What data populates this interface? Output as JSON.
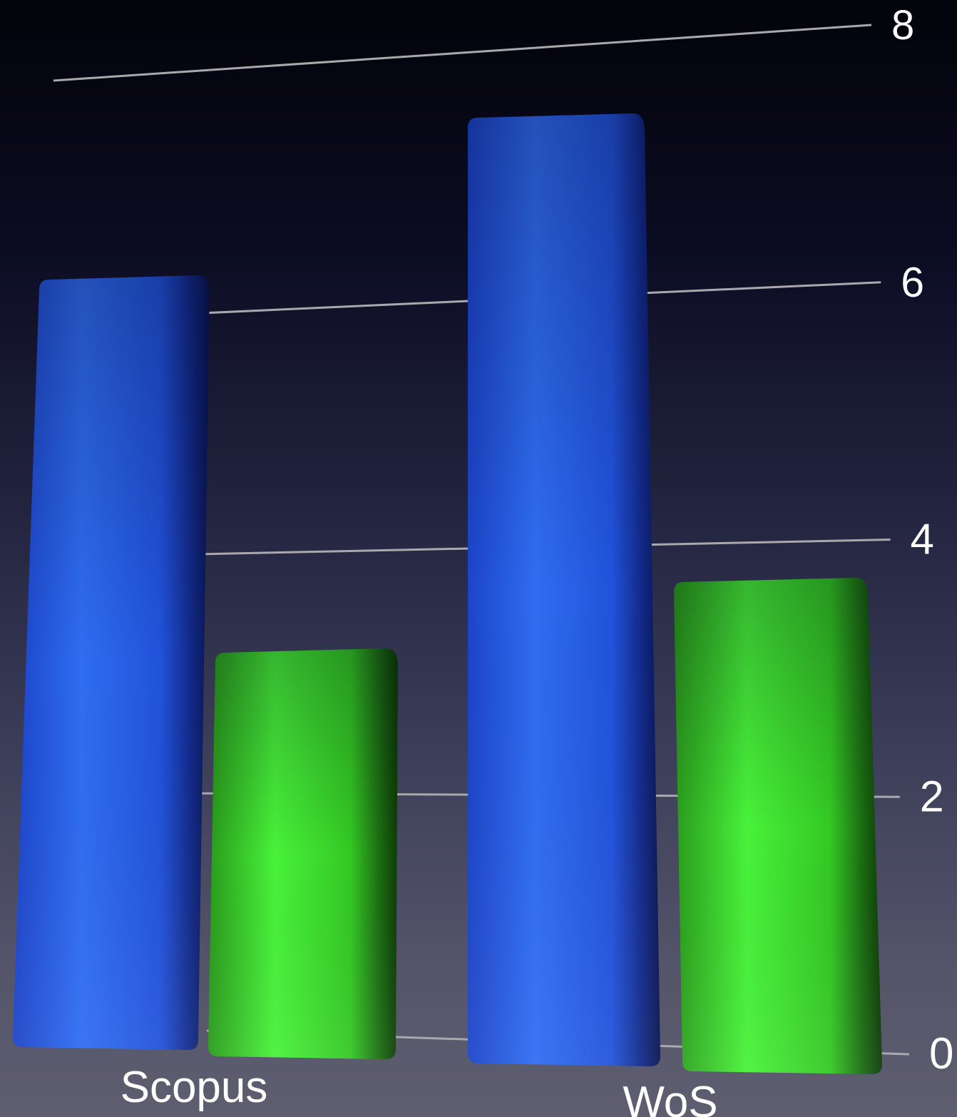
{
  "chart_data": {
    "type": "bar",
    "categories": [
      "Scopus",
      "WoS"
    ],
    "series": [
      {
        "values": [
          6.3,
          3.25
        ],
        "color": "#2b5fe8"
      },
      {
        "values": [
          7.4,
          3.85
        ],
        "color": "#3ed42a"
      }
    ],
    "ylim": [
      0,
      8
    ],
    "yticks": [
      "0",
      "2",
      "4",
      "6",
      "8"
    ],
    "grid": true,
    "style": "3d-perspective"
  }
}
